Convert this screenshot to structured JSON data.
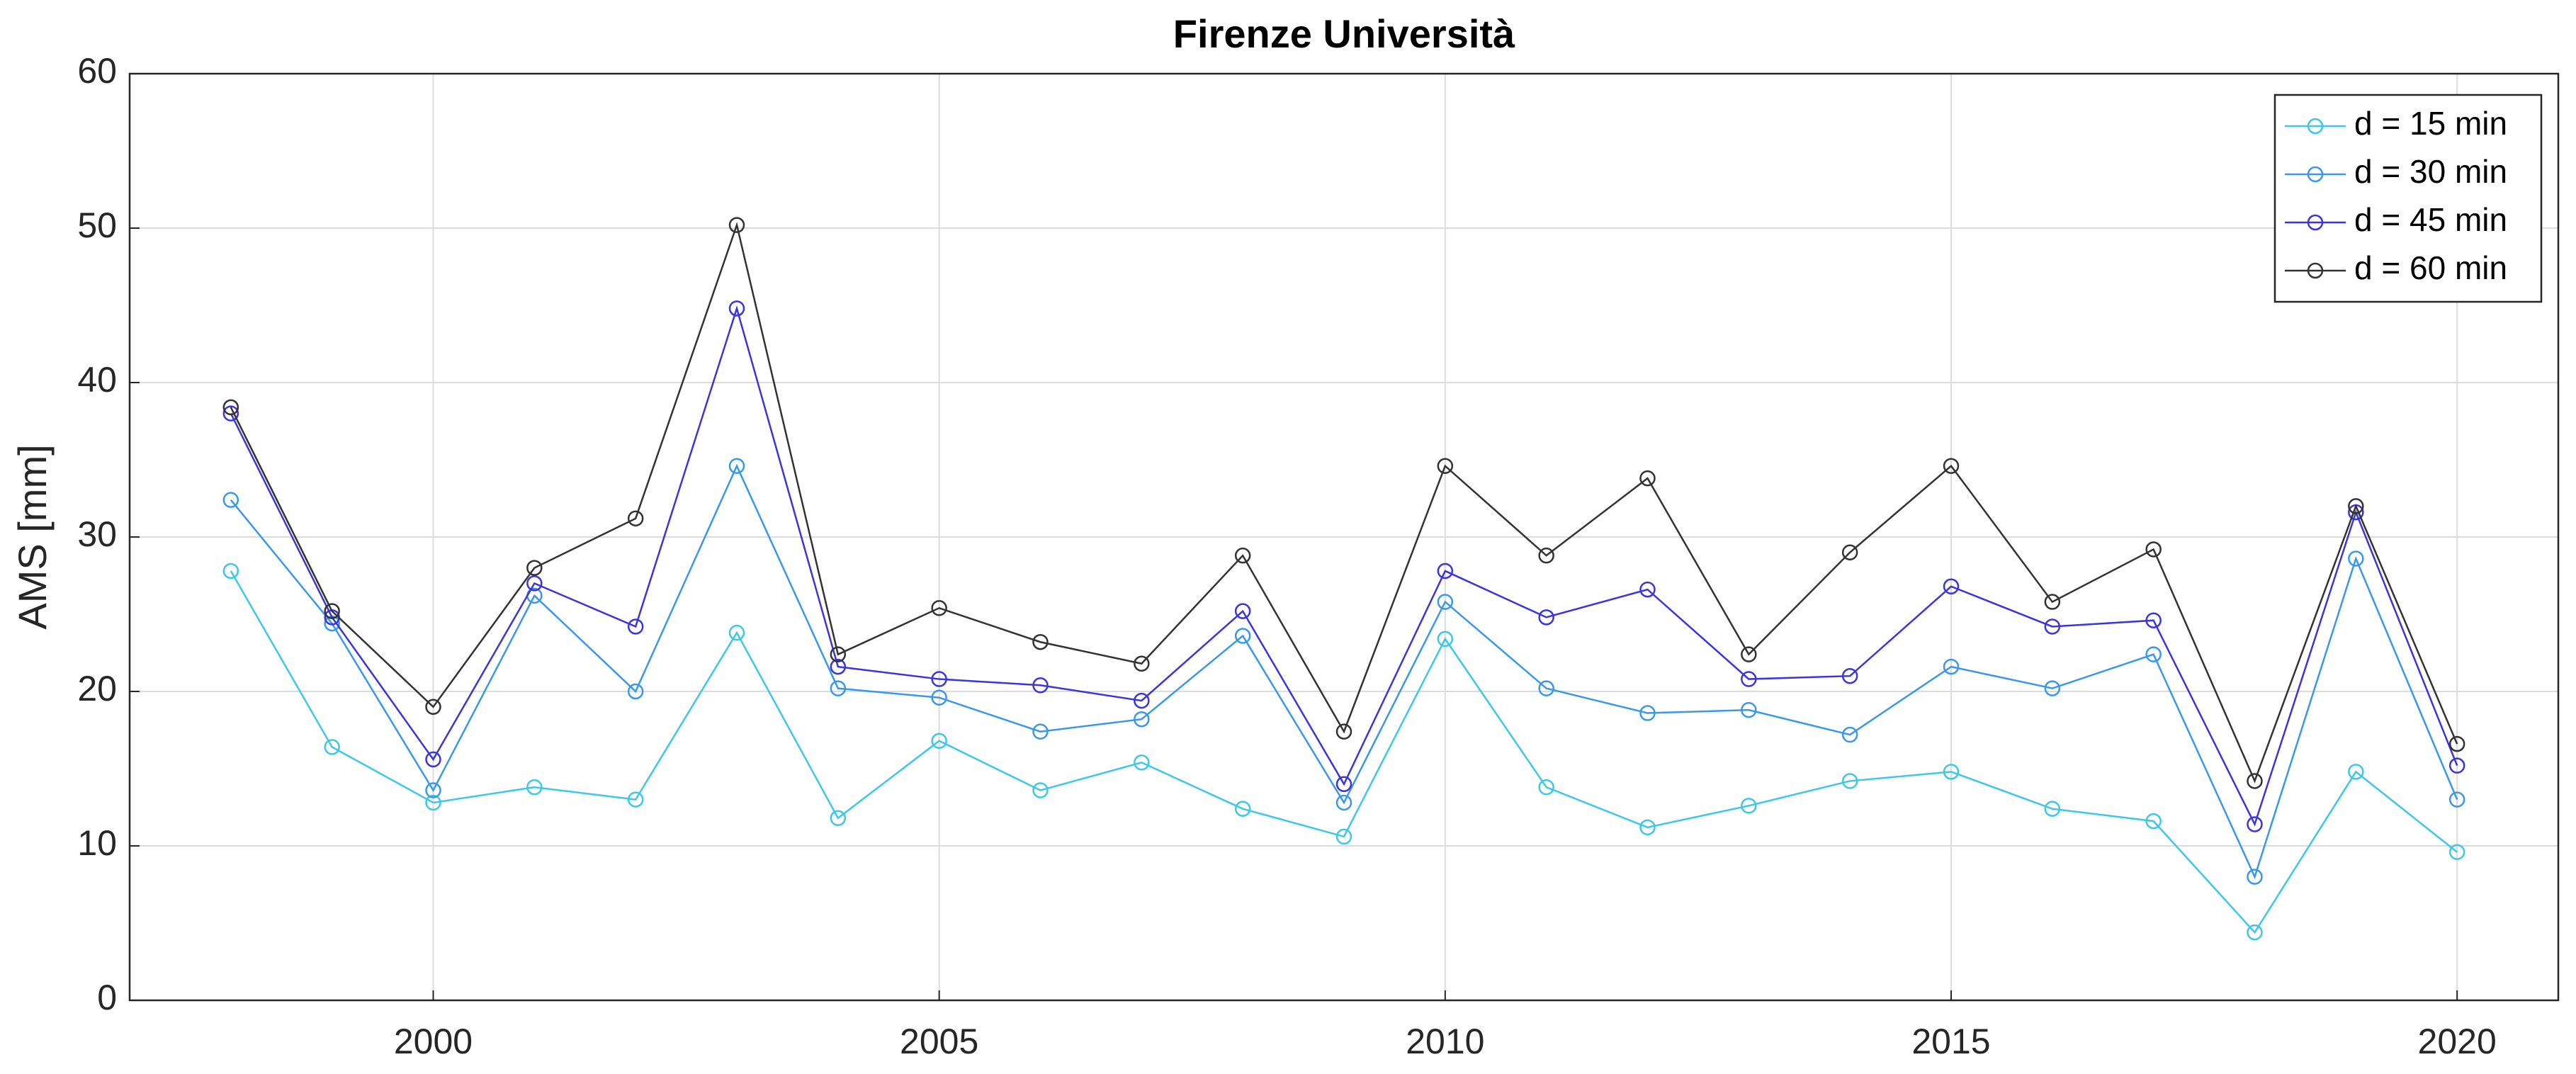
{
  "chart_data": {
    "type": "line",
    "title": "Firenze Università",
    "ylabel": "AMS [mm]",
    "x": [
      1998,
      1999,
      2000,
      2001,
      2002,
      2003,
      2004,
      2005,
      2006,
      2007,
      2008,
      2009,
      2010,
      2011,
      2012,
      2013,
      2014,
      2015,
      2016,
      2017,
      2018,
      2019,
      2020
    ],
    "series": [
      {
        "name": "d = 15 min",
        "color": "#3cc8e6",
        "values": [
          27.8,
          16.4,
          12.8,
          13.8,
          13.0,
          23.8,
          11.8,
          16.8,
          13.6,
          15.4,
          12.4,
          10.6,
          23.4,
          13.8,
          11.2,
          12.6,
          14.2,
          14.8,
          12.4,
          11.6,
          4.4,
          14.8,
          9.6
        ]
      },
      {
        "name": "d = 30 min",
        "color": "#3a98ea",
        "values": [
          32.4,
          24.4,
          13.6,
          26.2,
          20.0,
          34.6,
          20.2,
          19.6,
          17.4,
          18.2,
          23.6,
          12.8,
          25.8,
          20.2,
          18.6,
          18.8,
          17.2,
          21.6,
          20.2,
          22.4,
          8.0,
          28.6,
          13.0
        ]
      },
      {
        "name": "d = 45 min",
        "color": "#3a35dc",
        "values": [
          38.0,
          24.8,
          15.6,
          27.0,
          24.2,
          44.8,
          21.6,
          20.8,
          20.4,
          19.4,
          25.2,
          14.0,
          27.8,
          24.8,
          26.6,
          20.8,
          21.0,
          26.8,
          24.2,
          24.6,
          11.4,
          31.6,
          15.2
        ]
      },
      {
        "name": "d = 60 min",
        "color": "#333333",
        "values": [
          38.4,
          25.2,
          19.0,
          28.0,
          31.2,
          50.2,
          22.4,
          25.4,
          23.2,
          21.8,
          28.8,
          17.4,
          34.6,
          28.8,
          33.8,
          22.4,
          29.0,
          34.6,
          25.8,
          29.2,
          14.2,
          32.0,
          16.6
        ]
      }
    ],
    "xlim": [
      1997,
      2021
    ],
    "xticks": [
      2000,
      2005,
      2010,
      2015,
      2020
    ],
    "ylim": [
      0,
      60
    ],
    "yticks": [
      0,
      10,
      20,
      30,
      40,
      50,
      60
    ],
    "grid": true,
    "legend": "upper right"
  }
}
